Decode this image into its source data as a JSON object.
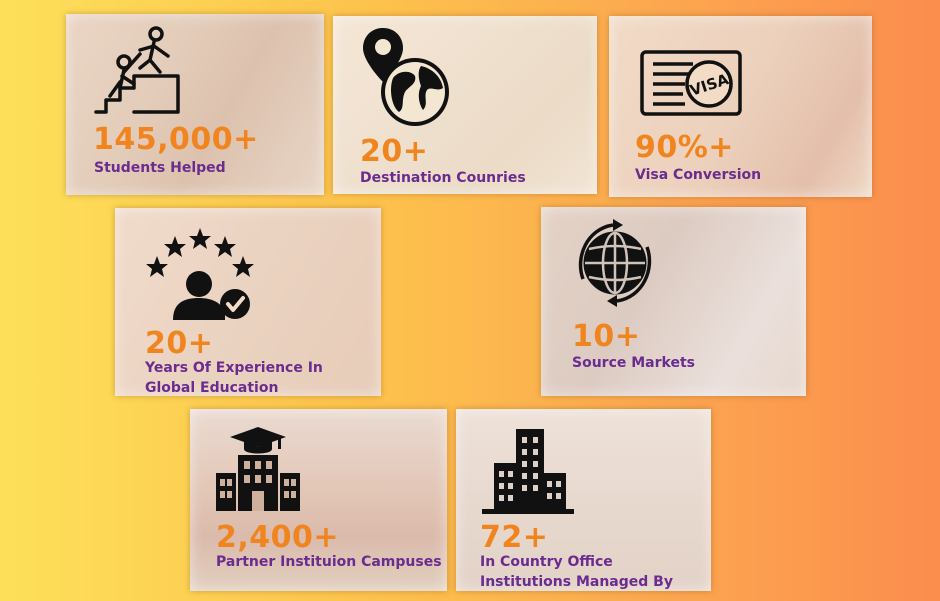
{
  "theme": {
    "stat_color": "#f0851f",
    "label_color": "#6a2c8f",
    "icon_color": "#111111"
  },
  "cards": [
    {
      "id": "students",
      "stat": "145,000+",
      "label": "Students Helped",
      "icon": "climbing-help-icon"
    },
    {
      "id": "destinations",
      "stat": "20+",
      "label": "Destination Counries",
      "icon": "map-pin-globe-icon"
    },
    {
      "id": "visa",
      "stat": "90%+",
      "label": "Visa Conversion",
      "icon": "visa-stamp-icon"
    },
    {
      "id": "experience",
      "stat": "20+",
      "label": "Years Of Experience In Global Education",
      "icon": "user-rating-stars-icon"
    },
    {
      "id": "source",
      "stat": "10+",
      "label": "Source Markets",
      "icon": "rotating-globe-icon"
    },
    {
      "id": "partners",
      "stat": "2,400+",
      "label": "Partner Instituion Campuses",
      "icon": "university-building-icon"
    },
    {
      "id": "incountry",
      "stat": "72+",
      "label": "In Country Office Institutions Managed By Team",
      "icon": "office-towers-icon"
    }
  ]
}
